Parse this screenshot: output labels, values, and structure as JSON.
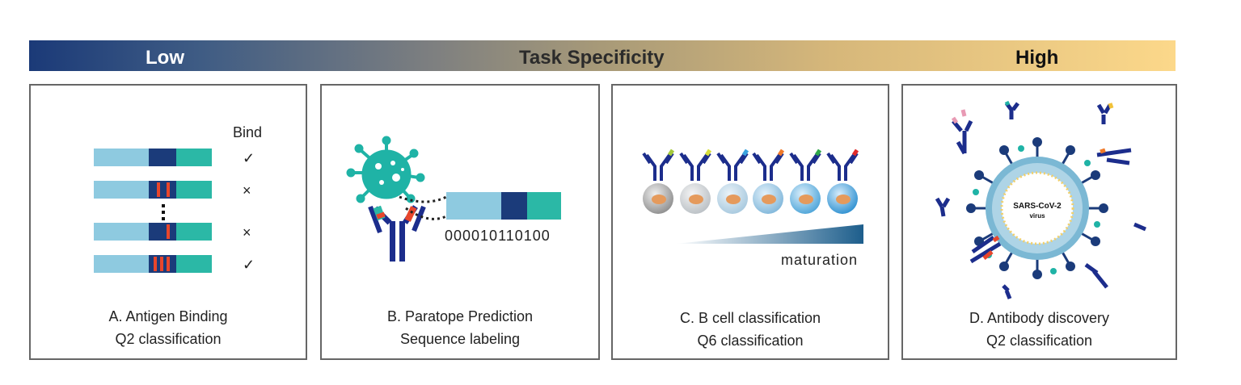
{
  "scale_bar": {
    "low_label": "Low",
    "title": "Task Specificity",
    "high_label": "High"
  },
  "panels": {
    "a": {
      "column_header": "Bind",
      "marks": [
        "✓",
        "×",
        "×",
        "✓"
      ],
      "caption_line1": "A. Antigen Binding",
      "caption_line2": "Q2 classification"
    },
    "b": {
      "binary_label": "000010110100",
      "caption_line1": "B. Paratope Prediction",
      "caption_line2": "Sequence labeling"
    },
    "c": {
      "maturation_label": "maturation",
      "caption_line1": "C. B cell classification",
      "caption_line2": "Q6 classification"
    },
    "d": {
      "virus_label_line1": "SARS-CoV-2",
      "virus_label_line2": "virus",
      "caption_line1": "D. Antibody discovery",
      "caption_line2": "Q2 classification"
    }
  },
  "colors": {
    "light_blue": "#8ecae0",
    "navy": "#1b3b7a",
    "teal": "#2bb8a6",
    "red": "#e8462c",
    "antibody": "#1c2d8c",
    "virus": "#1fb3a6"
  }
}
